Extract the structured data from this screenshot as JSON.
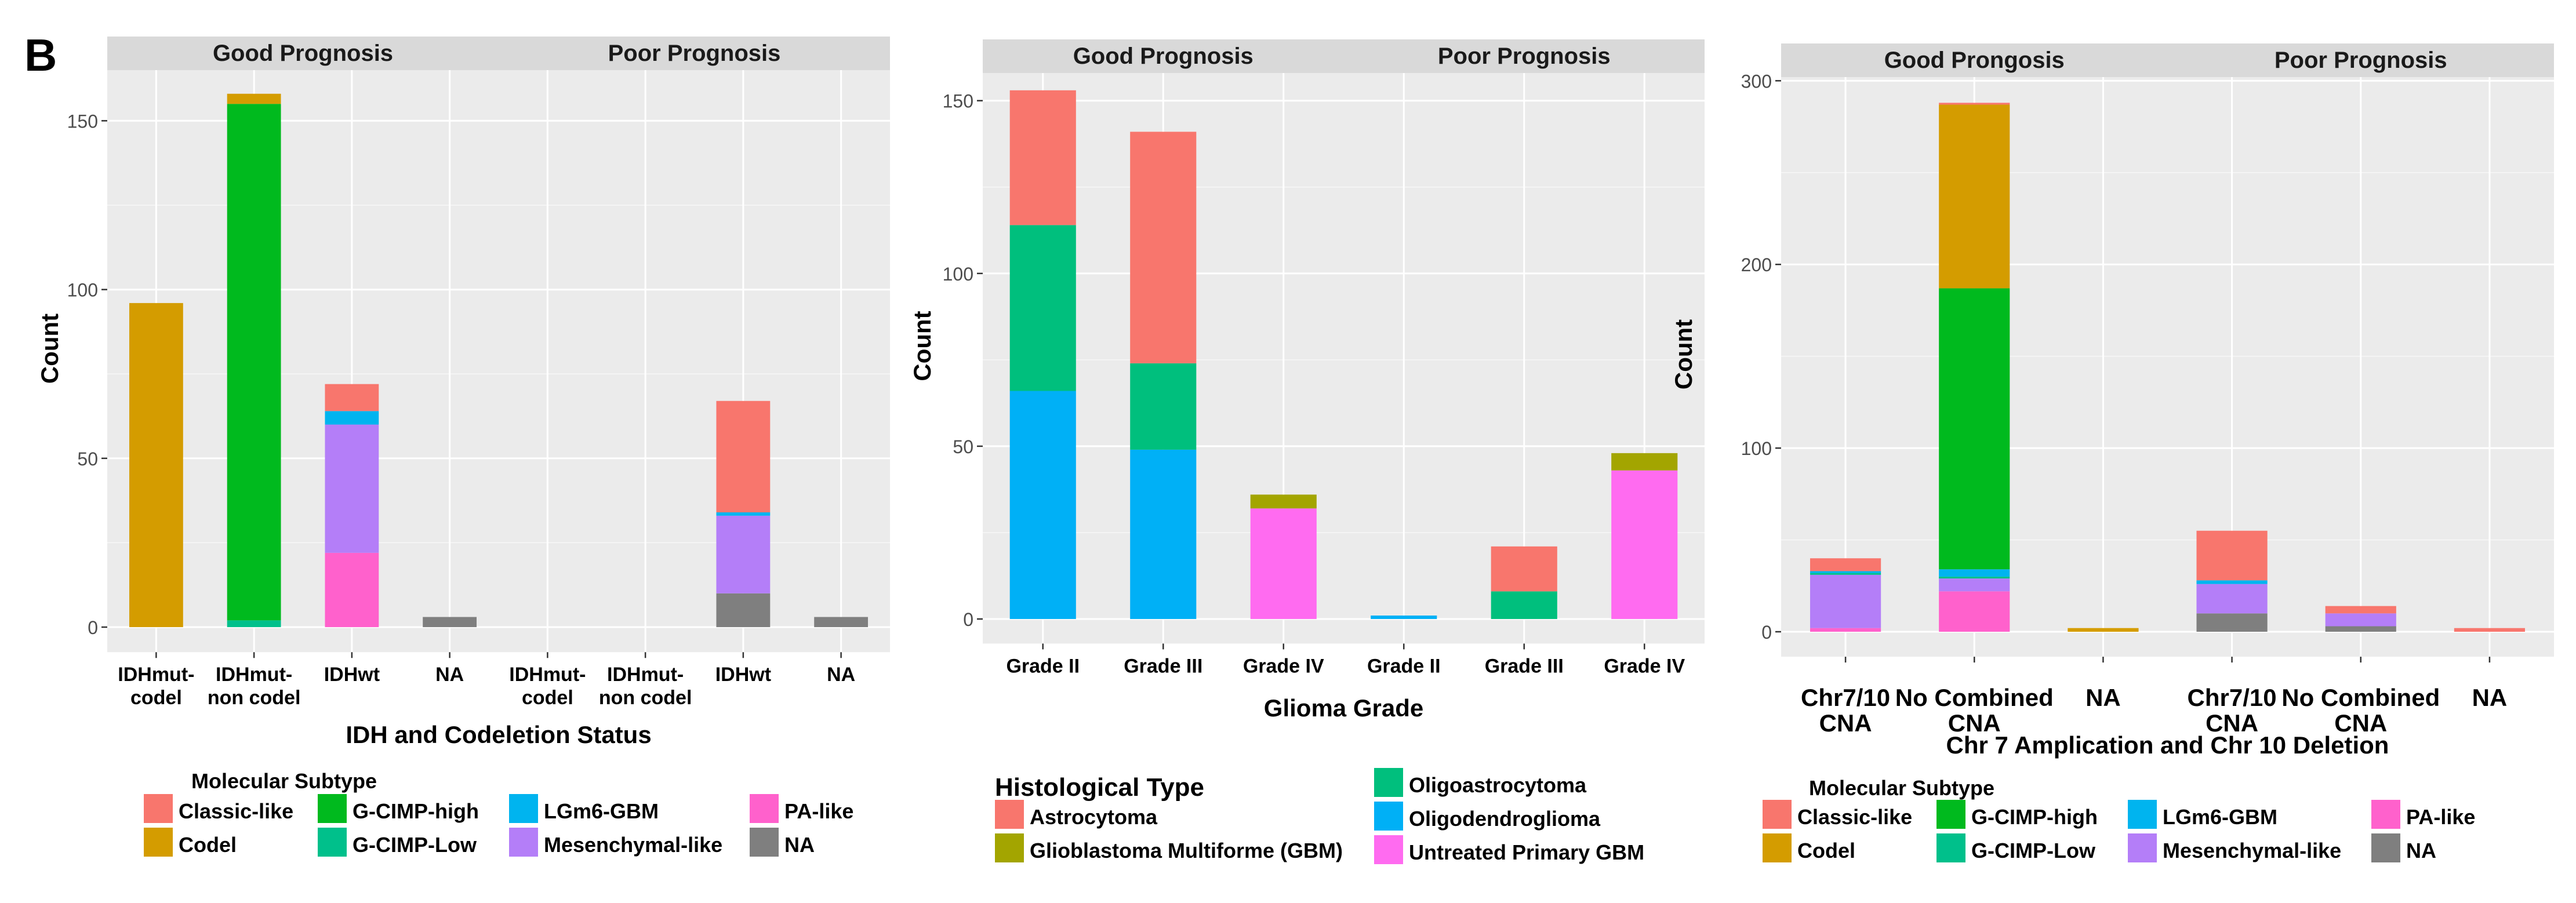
{
  "panel_label": "B",
  "colors": {
    "Classic-like": "#F8766D",
    "Codel": "#D49C00",
    "G-CIMP-high": "#00BA1E",
    "G-CIMP-Low": "#00C08B",
    "LGm6-GBM": "#00B4EF",
    "Mesenchymal-like": "#B47EF8",
    "PA-like": "#FF61CC",
    "NA": "#7F7F7F",
    "Astrocytoma": "#F8766D",
    "Glioblastoma Multiforme (GBM)": "#A3A500",
    "Oligoastrocytoma": "#00BF7D",
    "Oligodendroglioma": "#00B0F6",
    "Untreated Primary GBM": "#FF6BF0"
  },
  "chart_data": [
    {
      "type": "bar",
      "stacked": true,
      "facets": [
        "Good Prognosis",
        "Poor Prognosis"
      ],
      "categories": [
        "IDHmut-\ncodel",
        "IDHmut-\nnon codel",
        "IDHwt",
        "NA"
      ],
      "xlabel": "IDH and Codeletion Status",
      "ylabel": "Count",
      "ylim": [
        0,
        165
      ],
      "yticks": [
        0,
        50,
        100,
        150
      ],
      "grid": true,
      "legend_title": "Molecular Subtype",
      "legend_entries": [
        "Classic-like",
        "Codel",
        "G-CIMP-high",
        "G-CIMP-Low",
        "LGm6-GBM",
        "Mesenchymal-like",
        "PA-like",
        "NA"
      ],
      "series": [
        {
          "name": "PA-like",
          "values": [
            [
              0,
              0,
              22,
              0
            ],
            [
              0,
              0,
              0,
              0
            ]
          ]
        },
        {
          "name": "NA",
          "values": [
            [
              0,
              0,
              0,
              3
            ],
            [
              0,
              0,
              10,
              3
            ]
          ]
        },
        {
          "name": "G-CIMP-Low",
          "values": [
            [
              0,
              2,
              0,
              0
            ],
            [
              0,
              0,
              0,
              0
            ]
          ]
        },
        {
          "name": "Mesenchymal-like",
          "values": [
            [
              0,
              0,
              38,
              0
            ],
            [
              0,
              0,
              23,
              0
            ]
          ]
        },
        {
          "name": "LGm6-GBM",
          "values": [
            [
              0,
              0,
              4,
              0
            ],
            [
              0,
              0,
              1,
              0
            ]
          ]
        },
        {
          "name": "G-CIMP-high",
          "values": [
            [
              0,
              153,
              0,
              0
            ],
            [
              0,
              0,
              0,
              0
            ]
          ]
        },
        {
          "name": "Codel",
          "values": [
            [
              96,
              3,
              0,
              0
            ],
            [
              0,
              0,
              0,
              0
            ]
          ]
        },
        {
          "name": "Classic-like",
          "values": [
            [
              0,
              0,
              8,
              0
            ],
            [
              0,
              0,
              33,
              0
            ]
          ]
        }
      ]
    },
    {
      "type": "bar",
      "stacked": true,
      "facets": [
        "Good Prognosis",
        "Poor Prognosis"
      ],
      "categories": [
        "Grade II",
        "Grade III",
        "Grade IV"
      ],
      "xlabel": "Glioma Grade",
      "ylabel": "Count",
      "ylim": [
        0,
        158
      ],
      "yticks": [
        0,
        50,
        100,
        150
      ],
      "grid": true,
      "legend_title": "Histological Type",
      "legend_entries": [
        "Astrocytoma",
        "Glioblastoma Multiforme (GBM)",
        "Oligoastrocytoma",
        "Oligodendroglioma",
        "Untreated Primary GBM"
      ],
      "series": [
        {
          "name": "Oligodendroglioma",
          "values": [
            [
              66,
              49,
              0
            ],
            [
              1,
              0,
              0
            ]
          ]
        },
        {
          "name": "Untreated Primary GBM",
          "values": [
            [
              0,
              0,
              32
            ],
            [
              0,
              0,
              43
            ]
          ]
        },
        {
          "name": "Oligoastrocytoma",
          "values": [
            [
              48,
              25,
              0
            ],
            [
              0,
              8,
              0
            ]
          ]
        },
        {
          "name": "Glioblastoma Multiforme (GBM)",
          "values": [
            [
              0,
              0,
              4
            ],
            [
              0,
              0,
              5
            ]
          ]
        },
        {
          "name": "Astrocytoma",
          "values": [
            [
              39,
              67,
              0
            ],
            [
              0,
              13,
              0
            ]
          ]
        }
      ]
    },
    {
      "type": "bar",
      "stacked": true,
      "facets": [
        "Good Prongosis",
        "Poor Prognosis"
      ],
      "categories": [
        "Chr7/10\nCNA",
        "No Combined\nCNA",
        "NA"
      ],
      "xlabel": "Chr 7 Amplication and Chr 10 Deletion",
      "ylabel": "Count",
      "ylim": [
        0,
        302
      ],
      "yticks": [
        0,
        100,
        200,
        300
      ],
      "grid": true,
      "legend_title": "Molecular Subtype",
      "legend_entries": [
        "Classic-like",
        "Codel",
        "G-CIMP-high",
        "G-CIMP-Low",
        "LGm6-GBM",
        "Mesenchymal-like",
        "PA-like",
        "NA"
      ],
      "series": [
        {
          "name": "PA-like",
          "values": [
            [
              2,
              22,
              0
            ],
            [
              0,
              0,
              0
            ]
          ]
        },
        {
          "name": "NA",
          "values": [
            [
              0,
              0,
              0
            ],
            [
              10,
              3,
              0
            ]
          ]
        },
        {
          "name": "Mesenchymal-like",
          "values": [
            [
              29,
              7,
              0
            ],
            [
              16,
              7,
              0
            ]
          ]
        },
        {
          "name": "G-CIMP-Low",
          "values": [
            [
              1,
              1,
              0
            ],
            [
              0,
              0,
              0
            ]
          ]
        },
        {
          "name": "LGm6-GBM",
          "values": [
            [
              1,
              4,
              0
            ],
            [
              2,
              0,
              0
            ]
          ]
        },
        {
          "name": "G-CIMP-high",
          "values": [
            [
              0,
              153,
              0
            ],
            [
              0,
              0,
              0
            ]
          ]
        },
        {
          "name": "Codel",
          "values": [
            [
              0,
              100,
              2
            ],
            [
              0,
              0,
              0
            ]
          ]
        },
        {
          "name": "Classic-like",
          "values": [
            [
              7,
              1,
              0
            ],
            [
              27,
              4,
              2
            ]
          ]
        }
      ]
    }
  ]
}
